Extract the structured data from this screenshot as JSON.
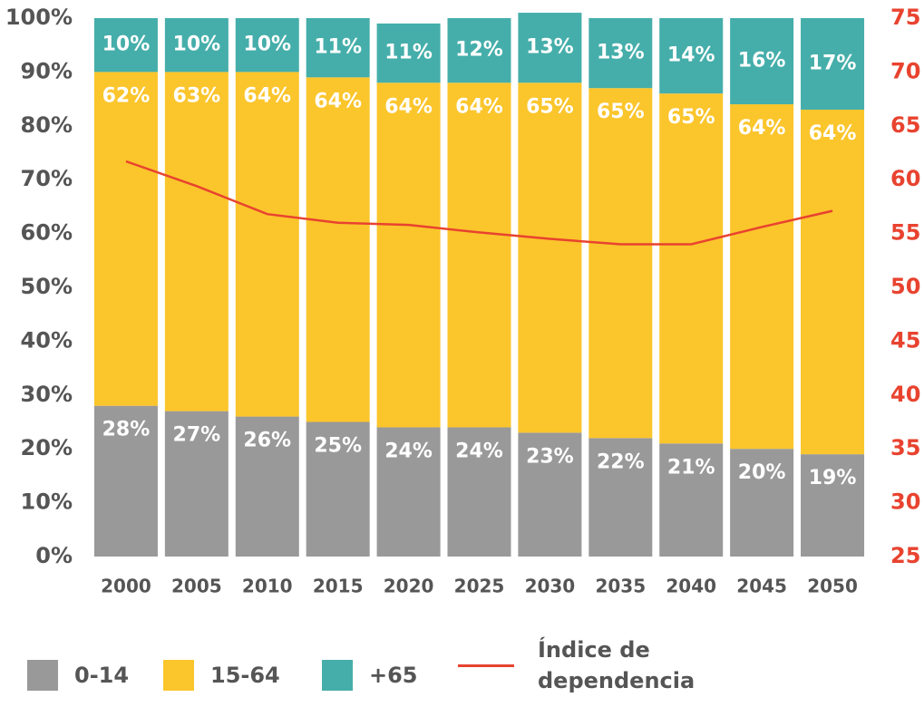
{
  "chart_data": {
    "type": "bar",
    "stacked": true,
    "categories": [
      "2000",
      "2005",
      "2010",
      "2015",
      "2020",
      "2025",
      "2030",
      "2035",
      "2040",
      "2045",
      "2050"
    ],
    "series": [
      {
        "name": "0-14",
        "color": "#999999",
        "values": [
          28,
          27,
          26,
          25,
          24,
          24,
          23,
          22,
          21,
          20,
          19
        ],
        "value_labels": [
          "28%",
          "27%",
          "26%",
          "25%",
          "24%",
          "24%",
          "23%",
          "22%",
          "21%",
          "20%",
          "19%"
        ]
      },
      {
        "name": "15-64",
        "color": "#fbc52c",
        "values": [
          62,
          63,
          64,
          64,
          64,
          64,
          65,
          65,
          65,
          64,
          64
        ],
        "value_labels": [
          "62%",
          "63%",
          "64%",
          "64%",
          "64%",
          "64%",
          "65%",
          "65%",
          "65%",
          "64%",
          "64%"
        ]
      },
      {
        "name": "+65",
        "color": "#45aeaa",
        "values": [
          10,
          10,
          10,
          11,
          11,
          12,
          13,
          13,
          14,
          16,
          17
        ],
        "value_labels": [
          "10%",
          "10%",
          "10%",
          "11%",
          "11%",
          "12%",
          "13%",
          "13%",
          "14%",
          "16%",
          "17%"
        ]
      },
      {
        "name": "Índice de dependencia",
        "color": "#e8432f",
        "type": "line",
        "axis": "y2",
        "values": [
          61.7,
          59.4,
          56.8,
          56.0,
          55.8,
          55.1,
          54.5,
          54.0,
          54.0,
          55.6,
          57.1
        ]
      }
    ],
    "ylim": [
      0,
      100
    ],
    "yticks": [
      {
        "value": 0,
        "label": "0%"
      },
      {
        "value": 10,
        "label": "10%"
      },
      {
        "value": 20,
        "label": "20%"
      },
      {
        "value": 30,
        "label": "30%"
      },
      {
        "value": 40,
        "label": "40%"
      },
      {
        "value": 50,
        "label": "50%"
      },
      {
        "value": 60,
        "label": "60%"
      },
      {
        "value": 70,
        "label": "70%"
      },
      {
        "value": 80,
        "label": "80%"
      },
      {
        "value": 90,
        "label": "90%"
      },
      {
        "value": 100,
        "label": "100%"
      }
    ],
    "y2lim": [
      25,
      75
    ],
    "y2ticks": [
      25,
      30,
      35,
      40,
      45,
      50,
      55,
      60,
      65,
      70,
      75
    ],
    "legend": "bottom"
  }
}
